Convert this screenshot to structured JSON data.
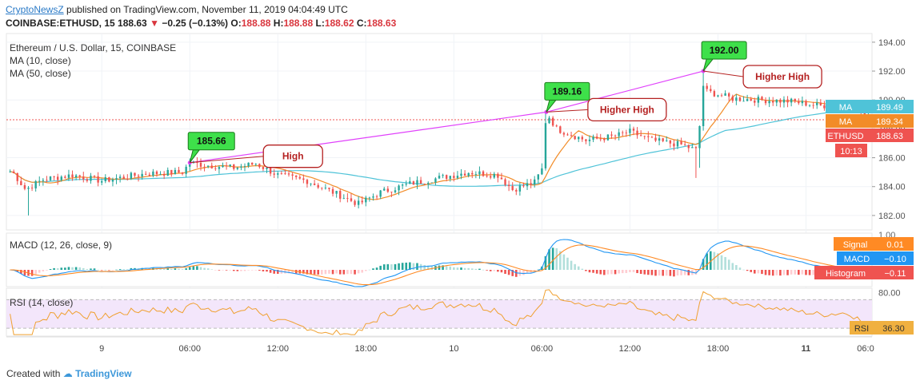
{
  "header": {
    "publisher": "CryptoNewsZ",
    "published_text": "published on TradingView.com, November 11, 2019 04:04:49 UTC",
    "symbol": "COINBASE:ETHUSD, 15",
    "last": "188.63",
    "change": "−0.25 (−0.13%)",
    "o_label": "O:",
    "o": "188.88",
    "h_label": "H:",
    "h": "188.88",
    "l_label": "L:",
    "l": "188.62",
    "c_label": "C:",
    "c": "188.63"
  },
  "footer": {
    "created_with": "Created with",
    "brand": "TradingView"
  },
  "colors": {
    "up": "#26a69a",
    "down": "#ef5350",
    "ma10": "#f28c28",
    "ma50": "#4fc3d8",
    "trend": "#e040fb",
    "callout_green": "#3ee04a",
    "callout_red": "#b52222",
    "macd": "#2196f3",
    "signal": "#ff8a24",
    "rsi": "#f0a030",
    "rsi_band": "#f3e6fb"
  },
  "chart_data": [
    {
      "type": "candlestick",
      "title": "Ethereum / U.S. Dollar, 15, COINBASE",
      "indicators": [
        "MA (10, close)",
        "MA (50, close)"
      ],
      "ylim": [
        181,
        194.6
      ],
      "yticks": [
        "194.00",
        "192.00",
        "190.00",
        "188.00",
        "186.00",
        "184.00",
        "182.00"
      ],
      "ytick_values": [
        194,
        192,
        190,
        188,
        186,
        184,
        182
      ],
      "xticks": [
        "9",
        "06:00",
        "12:00",
        "18:00",
        "10",
        "06:00",
        "12:00",
        "18:00",
        "11",
        "06:0"
      ],
      "x_range_hours": [
        -6.5,
        52.5
      ],
      "xtick_hours": [
        0,
        6,
        12,
        18,
        24,
        30,
        36,
        42,
        48,
        54
      ],
      "keypoints": [
        {
          "t": -7,
          "p": 185.5
        },
        {
          "t": -6,
          "p": 184.9
        },
        {
          "t": -5.2,
          "p": 183.8
        },
        {
          "t": -4,
          "p": 184.5
        },
        {
          "t": -2,
          "p": 184.8
        },
        {
          "t": 0,
          "p": 184.4
        },
        {
          "t": 3,
          "p": 184.9
        },
        {
          "t": 5.5,
          "p": 185.0
        },
        {
          "t": 6,
          "p": 185.66
        },
        {
          "t": 7,
          "p": 185.5
        },
        {
          "t": 9,
          "p": 185.3
        },
        {
          "t": 10.5,
          "p": 185.6
        },
        {
          "t": 12,
          "p": 184.8
        },
        {
          "t": 14,
          "p": 184.4
        },
        {
          "t": 16,
          "p": 183.5
        },
        {
          "t": 17.5,
          "p": 182.8
        },
        {
          "t": 19,
          "p": 183.6
        },
        {
          "t": 21,
          "p": 184.2
        },
        {
          "t": 23,
          "p": 184.6
        },
        {
          "t": 25,
          "p": 185.0
        },
        {
          "t": 26,
          "p": 184.9
        },
        {
          "t": 27,
          "p": 184.8
        },
        {
          "t": 28,
          "p": 183.8
        },
        {
          "t": 29.5,
          "p": 184.3
        },
        {
          "t": 30,
          "p": 185.2
        },
        {
          "t": 30.3,
          "p": 189.16
        },
        {
          "t": 31,
          "p": 188.0
        },
        {
          "t": 33,
          "p": 187.2
        },
        {
          "t": 35,
          "p": 187.5
        },
        {
          "t": 36,
          "p": 187.8
        },
        {
          "t": 37.5,
          "p": 187.2
        },
        {
          "t": 39.5,
          "p": 186.9
        },
        {
          "t": 40.6,
          "p": 186.5
        },
        {
          "t": 41,
          "p": 191.0
        },
        {
          "t": 41.2,
          "p": 190.6
        },
        {
          "t": 43,
          "p": 190.1
        },
        {
          "t": 45,
          "p": 190.0
        },
        {
          "t": 47,
          "p": 189.9
        },
        {
          "t": 49,
          "p": 189.6
        },
        {
          "t": 51,
          "p": 189.7
        },
        {
          "t": 52,
          "p": 188.9
        },
        {
          "t": 52.7,
          "p": 188.63
        }
      ],
      "ma_levels": [
        {
          "label": "MA",
          "value": "189.49",
          "color": "#4fc3d8",
          "price": 189.49
        },
        {
          "label": "MA",
          "value": "189.34",
          "color": "#f28c28",
          "price": 189.34
        },
        {
          "label": "ETHUSD",
          "value": "188.63",
          "color": "#ef5350",
          "price": 188.63
        },
        {
          "label": "",
          "value": "10:13",
          "color": "#ef5350",
          "price": 187.6
        }
      ],
      "current_price": 188.63,
      "trendline": [
        {
          "t": 6,
          "p": 185.66
        },
        {
          "t": 30.3,
          "p": 189.16
        },
        {
          "t": 41,
          "p": 192.0
        }
      ],
      "annotations": [
        {
          "t": 6,
          "p": 185.66,
          "price_label": "185.66",
          "note": "High"
        },
        {
          "t": 30.3,
          "p": 189.16,
          "price_label": "189.16",
          "note": "Higher High"
        },
        {
          "t": 41,
          "p": 192.0,
          "price_label": "192.00",
          "note": "Higher High"
        }
      ]
    },
    {
      "type": "histogram",
      "title": "MACD (12, 26, close, 9)",
      "series": [
        {
          "name": "Signal",
          "value": "0.01"
        },
        {
          "name": "MACD",
          "value": "−0.10"
        },
        {
          "name": "Histogram",
          "value": "−0.11"
        }
      ],
      "ylabel_partial": "1.00"
    },
    {
      "type": "line",
      "title": "RSI (14, close)",
      "ylim": [
        20,
        85
      ],
      "yticks": [
        "80.00"
      ],
      "ytick_values": [
        80
      ],
      "band": [
        30,
        70
      ],
      "last": "36.30",
      "label": "RSI"
    }
  ]
}
